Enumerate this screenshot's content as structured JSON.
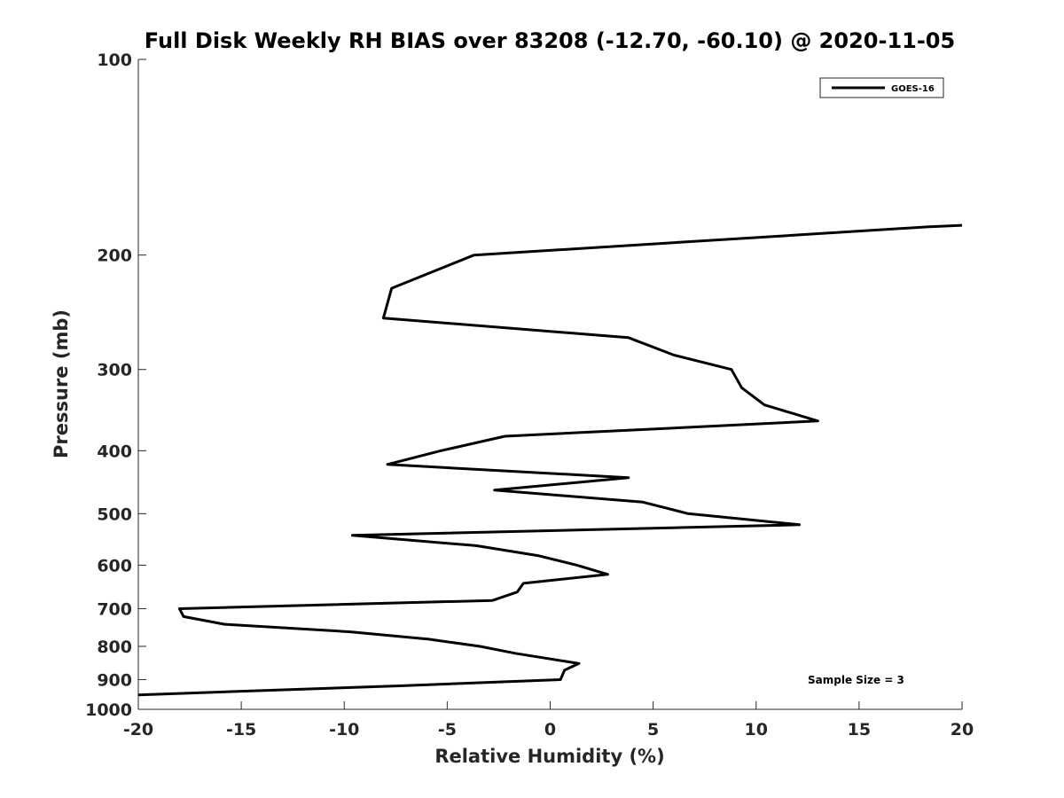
{
  "chart_data": {
    "type": "line",
    "title": "Full Disk Weekly RH BIAS over 83208 (-12.70, -60.10) @ 2020-11-05",
    "xlabel": "Relative Humidity (%)",
    "ylabel": "Pressure (mb)",
    "xlim": [
      -20,
      20
    ],
    "ylim": [
      1000,
      100
    ],
    "y_scale": "log",
    "y_reversed": true,
    "x_ticks": [
      -20,
      -15,
      -10,
      -5,
      0,
      5,
      10,
      15,
      20
    ],
    "x_tick_labels": [
      "-20",
      "-15",
      "-10",
      "-5",
      "0",
      "5",
      "10",
      "15",
      "20"
    ],
    "y_ticks": [
      100,
      200,
      300,
      400,
      500,
      600,
      700,
      800,
      900,
      1000
    ],
    "y_tick_labels": [
      "100",
      "200",
      "300",
      "400",
      "500",
      "600",
      "700",
      "800",
      "900",
      "1000"
    ],
    "grid": false,
    "legend_position": "top-right",
    "annotation": "Sample Size = 3",
    "series": [
      {
        "name": "GOES-16",
        "color": "#000000",
        "points": [
          [
            20.0,
            180
          ],
          [
            18.3,
            181
          ],
          [
            -3.7,
            200
          ],
          [
            -7.7,
            225
          ],
          [
            -8.1,
            250
          ],
          [
            3.8,
            268
          ],
          [
            6.0,
            285
          ],
          [
            8.8,
            300
          ],
          [
            9.3,
            320
          ],
          [
            10.4,
            340
          ],
          [
            13.0,
            360
          ],
          [
            -2.2,
            380
          ],
          [
            -5.3,
            400
          ],
          [
            -7.9,
            420
          ],
          [
            3.8,
            440
          ],
          [
            -2.7,
            460
          ],
          [
            4.5,
            480
          ],
          [
            6.7,
            500
          ],
          [
            12.1,
            520
          ],
          [
            -9.6,
            540
          ],
          [
            -3.6,
            560
          ],
          [
            -0.6,
            580
          ],
          [
            1.3,
            600
          ],
          [
            2.8,
            620
          ],
          [
            -1.3,
            640
          ],
          [
            -1.6,
            660
          ],
          [
            -2.8,
            680
          ],
          [
            -18.0,
            700
          ],
          [
            -17.8,
            720
          ],
          [
            -15.8,
            740
          ],
          [
            -9.7,
            760
          ],
          [
            -5.9,
            780
          ],
          [
            -3.4,
            800
          ],
          [
            -1.7,
            820
          ],
          [
            1.4,
            850
          ],
          [
            0.7,
            870
          ],
          [
            0.5,
            900
          ],
          [
            -7.3,
            920
          ],
          [
            -20.0,
            950
          ]
        ]
      }
    ]
  }
}
